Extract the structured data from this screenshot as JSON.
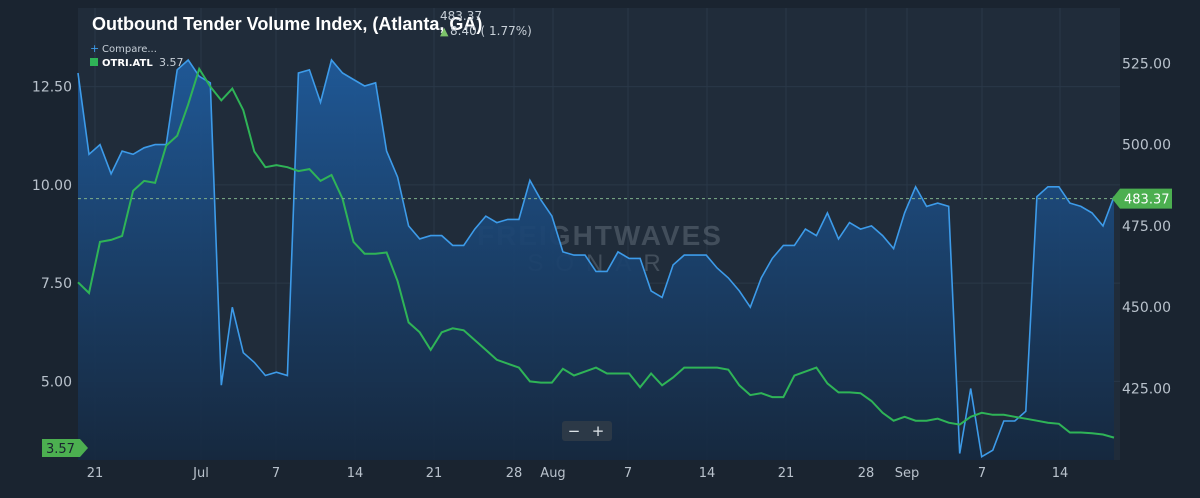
{
  "header": {
    "title": "Outbound Tender Volume Index, (Atlanta, GA)",
    "last_value": "483.37",
    "change": "8.40 ( 1.77%)",
    "compare_label": "Compare...",
    "series_code": "OTRI.ATL",
    "series_value": "3.57"
  },
  "watermark": {
    "line1": "FREIGHTWAVES",
    "line2": "SONAR"
  },
  "zoom": {
    "minus": "−",
    "plus": "+"
  },
  "markers": {
    "right_value": "483.37",
    "left_value": "3.57"
  },
  "colors": {
    "background": "#1a2430",
    "plot_background": "#202c3a",
    "area_line": "#3d9be9",
    "area_fill_top": "#1f5a9a",
    "green_line": "#2fb457",
    "marker_green": "#4caf50"
  },
  "chart_data": {
    "type": "area",
    "title": "Outbound Tender Volume Index, (Atlanta, GA)",
    "x_ticks": [
      "21",
      "Jul",
      "7",
      "14",
      "21",
      "28",
      "Aug",
      "7",
      "14",
      "21",
      "28",
      "Sep",
      "7",
      "14"
    ],
    "y_left": {
      "ticks": [
        "12.50",
        "10.00",
        "7.50",
        "5.00"
      ],
      "range": [
        3.0,
        14.5
      ]
    },
    "y_right": {
      "ticks": [
        "525.00",
        "500.00",
        "475.00",
        "450.00",
        "425.00"
      ],
      "range": [
        403.0,
        542.0
      ]
    },
    "reference_line": 483.37,
    "series": [
      {
        "name": "Outbound Tender Volume Index, (Atlanta, GA)",
        "axis": "right",
        "style": "area",
        "values": [
          522,
          497,
          500,
          491,
          498,
          497,
          499,
          500,
          500,
          523,
          526,
          521,
          519,
          426,
          450,
          436,
          433,
          429,
          430,
          429,
          522,
          523,
          513,
          526,
          522,
          520,
          518,
          519,
          498,
          490,
          475,
          471,
          472,
          472,
          469,
          469,
          474,
          478,
          476,
          477,
          477,
          489,
          483,
          478,
          467,
          466,
          466,
          461,
          461,
          467,
          465,
          465,
          455,
          453,
          463,
          466,
          466,
          466,
          462,
          459,
          455,
          450,
          459,
          465,
          469,
          469,
          474,
          472,
          479,
          471,
          476,
          474,
          475,
          472,
          468,
          479,
          487,
          481,
          482,
          481,
          405,
          425,
          404,
          406,
          415,
          415,
          418,
          484,
          487,
          487,
          482,
          481,
          479,
          475,
          484
        ]
      },
      {
        "name": "OTRI.ATL",
        "axis": "left",
        "style": "line",
        "values": [
          7.52,
          7.25,
          8.55,
          8.6,
          8.7,
          9.85,
          10.1,
          10.05,
          11.0,
          11.25,
          12.05,
          12.95,
          12.5,
          12.15,
          12.45,
          11.9,
          10.85,
          10.45,
          10.5,
          10.45,
          10.35,
          10.4,
          10.1,
          10.25,
          9.65,
          8.55,
          8.25,
          8.25,
          8.28,
          7.55,
          6.5,
          6.25,
          5.8,
          6.25,
          6.35,
          6.3,
          6.05,
          5.8,
          5.55,
          5.45,
          5.35,
          5.0,
          4.97,
          4.97,
          5.32,
          5.15,
          5.25,
          5.35,
          5.2,
          5.2,
          5.2,
          4.85,
          5.2,
          4.9,
          5.1,
          5.35,
          5.35,
          5.35,
          5.35,
          5.3,
          4.9,
          4.65,
          4.7,
          4.6,
          4.6,
          5.15,
          5.25,
          5.35,
          4.95,
          4.72,
          4.72,
          4.7,
          4.5,
          4.2,
          4.0,
          4.1,
          4.0,
          4.0,
          4.05,
          3.95,
          3.9,
          4.1,
          4.2,
          4.15,
          4.15,
          4.1,
          4.05,
          4.0,
          3.95,
          3.92,
          3.7,
          3.7,
          3.68,
          3.65,
          3.57
        ]
      }
    ],
    "grid": true,
    "legend": "top-left"
  }
}
